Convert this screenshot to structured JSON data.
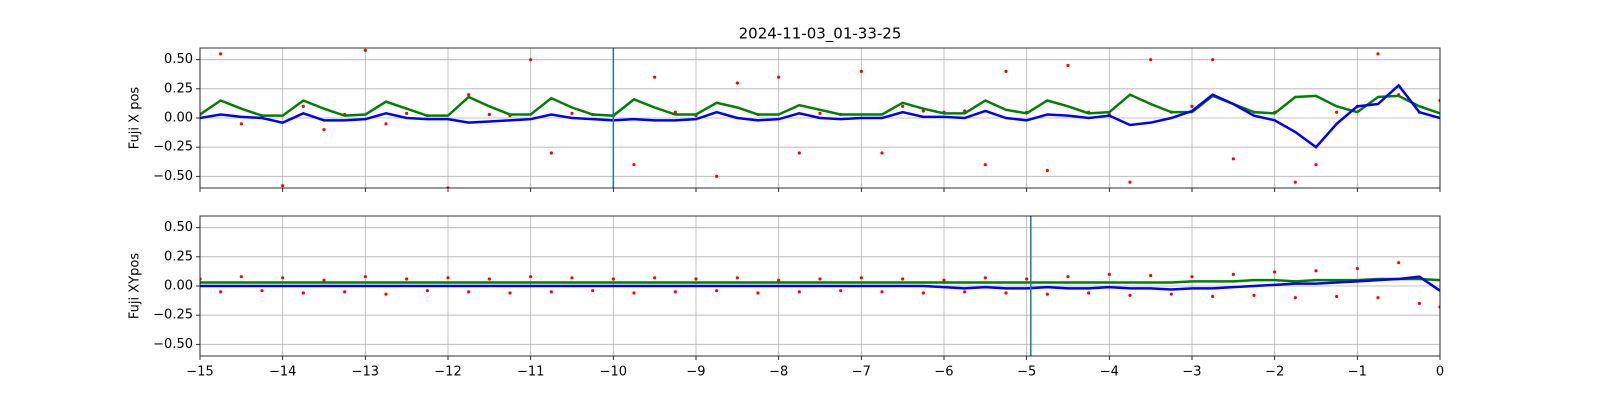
{
  "chart_data": [
    {
      "type": "line",
      "title": "2024-11-03_01-33-25",
      "ylabel": "Fuji X pos",
      "x": [
        -15,
        -14.75,
        -14.5,
        -14.25,
        -14,
        -13.75,
        -13.5,
        -13.25,
        -13,
        -12.75,
        -12.5,
        -12.25,
        -12,
        -11.75,
        -11.5,
        -11.25,
        -11,
        -10.75,
        -10.5,
        -10.25,
        -10,
        -9.75,
        -9.5,
        -9.25,
        -9,
        -8.75,
        -8.5,
        -8.25,
        -8,
        -7.75,
        -7.5,
        -7.25,
        -7,
        -6.75,
        -6.5,
        -6.25,
        -6,
        -5.75,
        -5.5,
        -5.25,
        -5,
        -4.75,
        -4.5,
        -4.25,
        -4,
        -3.75,
        -3.5,
        -3.25,
        -3,
        -2.75,
        -2.5,
        -2.25,
        -2,
        -1.75,
        -1.5,
        -1.25,
        -1,
        -0.75,
        -0.5,
        -0.25,
        0
      ],
      "series": [
        {
          "type": "scatter",
          "color": "#ff0000",
          "values": [
            0.03,
            0.55,
            -0.05,
            0.02,
            -0.58,
            0.1,
            -0.1,
            0.03,
            0.58,
            -0.05,
            0.04,
            0.02,
            -0.6,
            0.2,
            0.03,
            0.02,
            0.5,
            -0.3,
            0.04,
            0.03,
            0.02,
            -0.4,
            0.35,
            0.05,
            0.02,
            -0.5,
            0.3,
            0.03,
            0.35,
            -0.3,
            0.04,
            0.03,
            0.4,
            -0.3,
            0.1,
            0.06,
            0.05,
            0.06,
            -0.4,
            0.4,
            0.05,
            -0.45,
            0.45,
            0.05,
            0.03,
            -0.55,
            0.5,
            0.05,
            0.1,
            0.5,
            -0.35,
            0.05,
            0.05,
            -0.55,
            -0.4,
            0.05,
            0.1,
            0.55,
            0.2,
            0.05,
            0.15
          ]
        },
        {
          "type": "line",
          "color": "#008000",
          "values": [
            0.03,
            0.15,
            0.08,
            0.02,
            0.02,
            0.15,
            0.08,
            0.02,
            0.03,
            0.14,
            0.08,
            0.02,
            0.02,
            0.18,
            0.1,
            0.03,
            0.03,
            0.17,
            0.09,
            0.03,
            0.02,
            0.16,
            0.09,
            0.03,
            0.03,
            0.13,
            0.09,
            0.03,
            0.03,
            0.11,
            0.07,
            0.03,
            0.03,
            0.03,
            0.13,
            0.08,
            0.04,
            0.04,
            0.15,
            0.07,
            0.04,
            0.15,
            0.1,
            0.04,
            0.05,
            0.2,
            0.12,
            0.05,
            0.05,
            0.19,
            0.12,
            0.05,
            0.04,
            0.18,
            0.19,
            0.1,
            0.05,
            0.18,
            0.19,
            0.1,
            0.04
          ]
        },
        {
          "type": "line",
          "color": "#0000ff",
          "values": [
            0,
            0.03,
            0.01,
            0,
            -0.04,
            0.04,
            -0.02,
            -0.02,
            -0.01,
            0.04,
            0,
            -0.01,
            -0.01,
            -0.04,
            -0.03,
            -0.02,
            -0.01,
            0.03,
            0,
            -0.01,
            -0.02,
            -0.01,
            -0.02,
            -0.02,
            -0.01,
            0.05,
            0,
            -0.02,
            -0.01,
            0.04,
            0,
            -0.01,
            0,
            0,
            0.05,
            0.01,
            0.01,
            0,
            0.06,
            0,
            -0.02,
            0.03,
            0.02,
            0,
            0.02,
            -0.06,
            -0.04,
            0,
            0.06,
            0.2,
            0.12,
            0.02,
            -0.02,
            -0.12,
            -0.25,
            -0.05,
            0.1,
            0.12,
            0.28,
            0.05,
            0
          ]
        }
      ],
      "vline": -10,
      "vline_color": "#1f77b4",
      "xlim": [
        -15,
        0
      ],
      "xticks": [
        -15,
        -14,
        -13,
        -12,
        -11,
        -10,
        -9,
        -8,
        -7,
        -6,
        -5,
        -4,
        -3,
        -2,
        -1,
        0
      ],
      "ylim": [
        -0.6,
        0.6
      ],
      "yticks": [
        {
          "value": -0.5,
          "label": "−0.50"
        },
        {
          "value": -0.25,
          "label": "−0.25"
        },
        {
          "value": 0,
          "label": "0.00"
        },
        {
          "value": 0.25,
          "label": "0.25"
        },
        {
          "value": 0.5,
          "label": "0.50"
        }
      ],
      "grid": true
    },
    {
      "type": "line",
      "ylabel": "Fuji XYpos",
      "x": [
        -15,
        -14.75,
        -14.5,
        -14.25,
        -14,
        -13.75,
        -13.5,
        -13.25,
        -13,
        -12.75,
        -12.5,
        -12.25,
        -12,
        -11.75,
        -11.5,
        -11.25,
        -11,
        -10.75,
        -10.5,
        -10.25,
        -10,
        -9.75,
        -9.5,
        -9.25,
        -9,
        -8.75,
        -8.5,
        -8.25,
        -8,
        -7.75,
        -7.5,
        -7.25,
        -7,
        -6.75,
        -6.5,
        -6.25,
        -6,
        -5.75,
        -5.5,
        -5.25,
        -5,
        -4.75,
        -4.5,
        -4.25,
        -4,
        -3.75,
        -3.5,
        -3.25,
        -3,
        -2.75,
        -2.5,
        -2.25,
        -2,
        -1.75,
        -1.5,
        -1.25,
        -1,
        -0.75,
        -0.5,
        -0.25,
        0
      ],
      "series": [
        {
          "type": "scatter",
          "color": "#ff0000",
          "values": [
            0.06,
            -0.05,
            0.08,
            -0.04,
            0.07,
            -0.06,
            0.05,
            -0.05,
            0.08,
            -0.07,
            0.06,
            -0.04,
            0.07,
            -0.05,
            0.06,
            -0.06,
            0.08,
            -0.05,
            0.07,
            -0.04,
            0.06,
            -0.06,
            0.07,
            -0.05,
            0.06,
            -0.04,
            0.07,
            -0.06,
            0.05,
            -0.05,
            0.06,
            -0.04,
            0.07,
            -0.05,
            0.06,
            -0.06,
            0.05,
            -0.05,
            0.07,
            -0.06,
            0.06,
            -0.07,
            0.08,
            -0.06,
            0.1,
            -0.08,
            0.09,
            -0.07,
            0.08,
            -0.09,
            0.1,
            -0.08,
            0.12,
            -0.1,
            0.13,
            -0.09,
            0.15,
            -0.1,
            0.2,
            -0.15,
            -0.18
          ]
        },
        {
          "type": "line",
          "color": "#008000",
          "values": [
            0.03,
            0.03,
            0.03,
            0.03,
            0.03,
            0.03,
            0.03,
            0.03,
            0.03,
            0.03,
            0.03,
            0.03,
            0.03,
            0.03,
            0.03,
            0.03,
            0.03,
            0.03,
            0.03,
            0.03,
            0.03,
            0.03,
            0.03,
            0.03,
            0.03,
            0.03,
            0.03,
            0.03,
            0.03,
            0.03,
            0.03,
            0.03,
            0.03,
            0.03,
            0.03,
            0.03,
            0.03,
            0.03,
            0.03,
            0.03,
            0.03,
            0.03,
            0.03,
            0.03,
            0.03,
            0.03,
            0.03,
            0.03,
            0.04,
            0.04,
            0.04,
            0.05,
            0.05,
            0.04,
            0.05,
            0.05,
            0.05,
            0.06,
            0.06,
            0.06,
            0.05
          ]
        },
        {
          "type": "line",
          "color": "#0000ff",
          "values": [
            0,
            0,
            0,
            0,
            0,
            0,
            0,
            0,
            0,
            0,
            0,
            0,
            0,
            0,
            0,
            0,
            0,
            0,
            0,
            0,
            0,
            0,
            0,
            0,
            0,
            0,
            0,
            0,
            0,
            0,
            0,
            0,
            0,
            0,
            0,
            0,
            -0.01,
            -0.02,
            -0.01,
            -0.02,
            -0.02,
            -0.01,
            -0.02,
            -0.02,
            -0.01,
            -0.02,
            -0.02,
            -0.03,
            -0.02,
            -0.02,
            -0.01,
            0,
            0.01,
            0.02,
            0.02,
            0.03,
            0.04,
            0.05,
            0.06,
            0.08,
            -0.04
          ]
        }
      ],
      "vline": -4.95,
      "vline_color": "#1f77b4",
      "xlim": [
        -15,
        0
      ],
      "xticks": [
        {
          "value": -15,
          "label": "−15"
        },
        {
          "value": -14,
          "label": "−14"
        },
        {
          "value": -13,
          "label": "−13"
        },
        {
          "value": -12,
          "label": "−12"
        },
        {
          "value": -11,
          "label": "−11"
        },
        {
          "value": -10,
          "label": "−10"
        },
        {
          "value": -9,
          "label": "−9"
        },
        {
          "value": -8,
          "label": "−8"
        },
        {
          "value": -7,
          "label": "−7"
        },
        {
          "value": -6,
          "label": "−6"
        },
        {
          "value": -5,
          "label": "−5"
        },
        {
          "value": -4,
          "label": "−4"
        },
        {
          "value": -3,
          "label": "−3"
        },
        {
          "value": -2,
          "label": "−2"
        },
        {
          "value": -1,
          "label": "−1"
        },
        0
      ],
      "ylim": [
        -0.6,
        0.6
      ],
      "yticks": [
        {
          "value": -0.5,
          "label": "−0.50"
        },
        {
          "value": -0.25,
          "label": "−0.25"
        },
        {
          "value": 0,
          "label": "0.00"
        },
        {
          "value": 0.25,
          "label": "0.25"
        },
        {
          "value": 0.5,
          "label": "0.50"
        }
      ],
      "grid": true
    }
  ]
}
